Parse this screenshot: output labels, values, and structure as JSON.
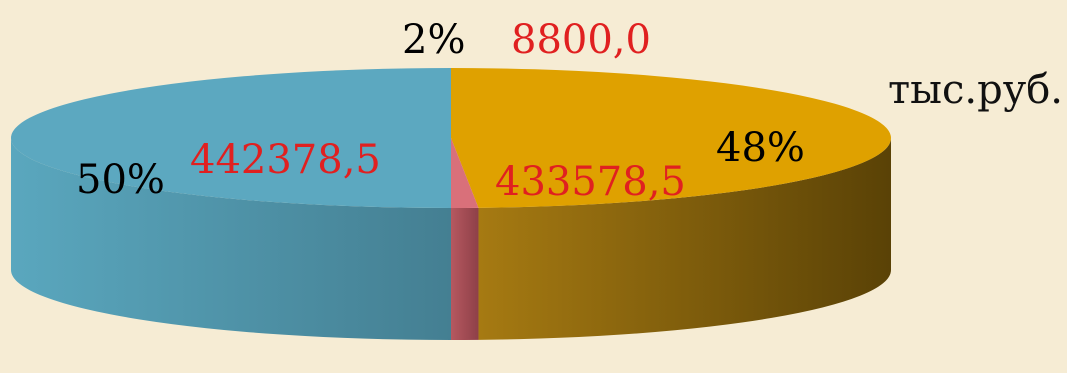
{
  "chart_data": {
    "type": "pie",
    "style": "3d",
    "unit_label": "тыс.руб.",
    "slices": [
      {
        "percent_label": "48%",
        "value_label": "433578,5",
        "value": 433578.5,
        "percent": 48,
        "color": "#dfa100"
      },
      {
        "percent_label": "2%",
        "value_label": "8800,0",
        "value": 8800.0,
        "percent": 2,
        "color": "#d9707a"
      },
      {
        "percent_label": "50%",
        "value_label": "442378,5",
        "value": 442378.5,
        "percent": 50,
        "color": "#5ca8c0"
      }
    ],
    "legend": "none"
  },
  "colors": {
    "background": "#f6ecd4",
    "value_text": "#e02020",
    "percent_text": "#000000"
  }
}
